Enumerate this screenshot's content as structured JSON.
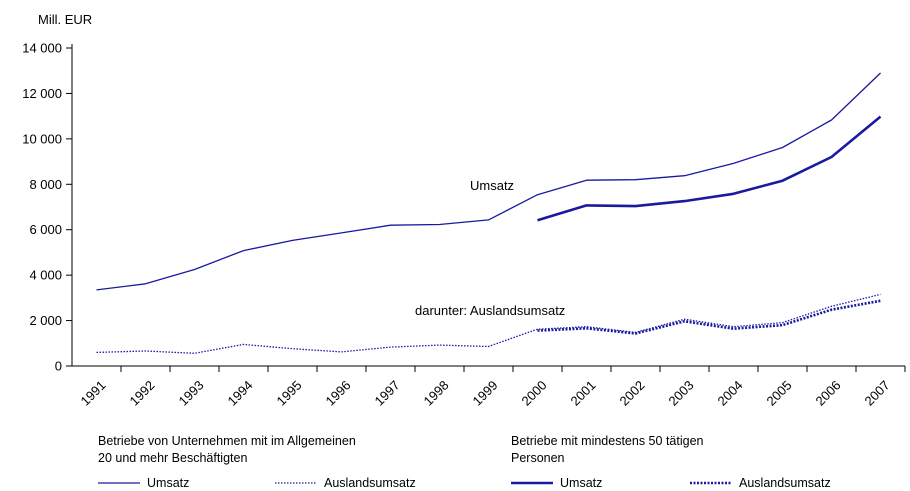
{
  "chart_data": {
    "type": "line",
    "ylabel": "Mill. EUR",
    "ylim": [
      0,
      14000
    ],
    "yticks": [
      0,
      2000,
      4000,
      6000,
      8000,
      10000,
      12000,
      14000
    ],
    "ytick_labels": [
      "0",
      "2 000",
      "4 000",
      "6 000",
      "8 000",
      "10 000",
      "12 000",
      "14 000"
    ],
    "categories": [
      "1991",
      "1992",
      "1993",
      "1994",
      "1995",
      "1996",
      "1997",
      "1998",
      "1999",
      "2000",
      "2001",
      "2002",
      "2003",
      "2004",
      "2005",
      "2006",
      "2007"
    ],
    "annotations": {
      "umsatz": "Umsatz",
      "auslandsumsatz": "darunter: Auslandsumsatz"
    },
    "series": [
      {
        "group": "a",
        "kind": "Umsatz",
        "style": "thin-solid",
        "x": [
          "1991",
          "1992",
          "1993",
          "1994",
          "1995",
          "1996",
          "1997",
          "1998",
          "1999",
          "2000",
          "2001",
          "2002",
          "2003",
          "2004",
          "2005",
          "2006",
          "2007"
        ],
        "values": [
          3350,
          3620,
          4250,
          5080,
          5530,
          5860,
          6200,
          6230,
          6430,
          7540,
          8180,
          8200,
          8380,
          8920,
          9620,
          10830,
          12900
        ]
      },
      {
        "group": "a",
        "kind": "Auslandsumsatz",
        "style": "thin-dotted",
        "x": [
          "1991",
          "1992",
          "1993",
          "1994",
          "1995",
          "1996",
          "1997",
          "1998",
          "1999",
          "2000",
          "2001",
          "2002",
          "2003",
          "2004",
          "2005",
          "2006",
          "2007"
        ],
        "values": [
          600,
          660,
          560,
          950,
          760,
          620,
          830,
          920,
          860,
          1620,
          1730,
          1480,
          2060,
          1730,
          1910,
          2630,
          3150
        ]
      },
      {
        "group": "b",
        "kind": "Umsatz",
        "style": "thick-solid",
        "x": [
          "2000",
          "2001",
          "2002",
          "2003",
          "2004",
          "2005",
          "2006",
          "2007"
        ],
        "values": [
          6420,
          7070,
          7040,
          7260,
          7580,
          8160,
          9200,
          10980
        ]
      },
      {
        "group": "b",
        "kind": "Auslandsumsatz",
        "style": "thick-dotted",
        "x": [
          "2000",
          "2001",
          "2002",
          "2003",
          "2004",
          "2005",
          "2006",
          "2007"
        ],
        "values": [
          1560,
          1660,
          1430,
          1970,
          1640,
          1800,
          2480,
          2870
        ]
      }
    ],
    "grid": false,
    "color": "#1a1aa0"
  },
  "legend": {
    "group_a": {
      "line1": "Betriebe von Unternehmen mit im Allgemeinen",
      "line2": "20 und mehr Beschäftigten"
    },
    "group_b": {
      "line1": "Betriebe mit mindestens 50 tätigen",
      "line2": "Personen"
    },
    "items": {
      "umsatz": "Umsatz",
      "auslandsumsatz": "Auslandsumsatz"
    }
  }
}
